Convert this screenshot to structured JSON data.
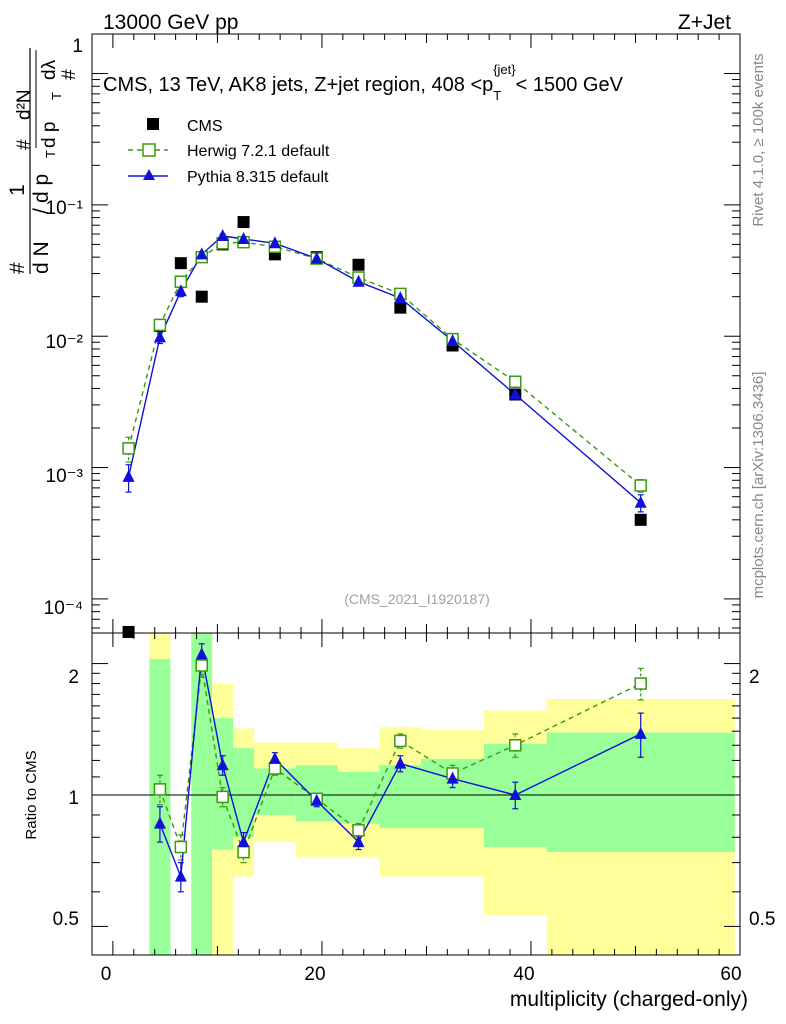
{
  "header": {
    "left": "13000 GeV pp",
    "right": "Z+Jet"
  },
  "side": {
    "rivet": "Rivet 4.1.0, ≥ 100k events",
    "mcplots": "mcplots.cern.ch [arXiv:1306.3436]"
  },
  "watermark": "(CMS_2021_I1920187)",
  "colors": {
    "cms": "#000000",
    "herwig": "#3a9a10",
    "pythia": "#1010d8",
    "band_inner": "#99ff99",
    "band_outer": "#ffff99"
  },
  "chart_data": [
    {
      "type": "scatter",
      "title": "CMS, 13 TeV, AK8 jets, Z+jet region, 408 <p_T^{jet}< 1500 GeV",
      "title_parts": {
        "main": "CMS, 13 TeV, AK8 jets, Z+jet region, 408 <p",
        "sub": "T",
        "sup": "{jet}",
        "tail": "< 1500 GeV"
      },
      "ylabel": "1/(dN/dp_T) d²N/(dp_T dλ)",
      "ylabel_parts": {
        "hash1": "#",
        "one": "1",
        "dN": "d N",
        "slash": "/",
        "dpT": "d p",
        "T": "T",
        "hash2": "#",
        "d2N": "d²N",
        "dp": "d p",
        "dl": "dλ",
        "hash3": "#"
      },
      "yscale": "log",
      "ylim": [
        5.5e-05,
        2.0
      ],
      "xlim": [
        -2,
        60
      ],
      "ytick_labels": [
        "10⁻⁴",
        "10⁻³",
        "10⁻²",
        "10⁻¹",
        "1"
      ],
      "legend": [
        "CMS",
        "Herwig 7.2.1 default",
        "Pythia 8.315 default"
      ],
      "series": [
        {
          "name": "CMS",
          "marker": "filled-square",
          "points": [
            [
              1.5,
              5.6e-05
            ],
            [
              4.5,
              0.012
            ],
            [
              6.5,
              0.036
            ],
            [
              8.5,
              0.02
            ],
            [
              10.5,
              0.05
            ],
            [
              12.5,
              0.074
            ],
            [
              15.5,
              0.042
            ],
            [
              19.5,
              0.04
            ],
            [
              23.5,
              0.035
            ],
            [
              27.5,
              0.0165
            ],
            [
              32.5,
              0.0085
            ],
            [
              38.5,
              0.0036
            ],
            [
              50.5,
              0.0004
            ]
          ]
        },
        {
          "name": "Herwig 7.2.1 default",
          "marker": "open-square",
          "line": "dashed",
          "points": [
            [
              1.5,
              0.0014
            ],
            [
              4.5,
              0.0122
            ],
            [
              6.5,
              0.026
            ],
            [
              8.5,
              0.04
            ],
            [
              10.5,
              0.051
            ],
            [
              12.5,
              0.052
            ],
            [
              15.5,
              0.048
            ],
            [
              19.5,
              0.039
            ],
            [
              23.5,
              0.028
            ],
            [
              27.5,
              0.021
            ],
            [
              32.5,
              0.0095
            ],
            [
              38.5,
              0.0045
            ],
            [
              50.5,
              0.00073
            ]
          ],
          "yerr": [
            0.0003,
            0.0012,
            0.002,
            0.002,
            0.002,
            0.002,
            0.002,
            0.0015,
            0.001,
            0.001,
            0.0006,
            0.0003,
            8e-05
          ]
        },
        {
          "name": "Pythia 8.315 default",
          "marker": "filled-triangle",
          "line": "solid",
          "points": [
            [
              1.5,
              0.00085
            ],
            [
              4.5,
              0.0098
            ],
            [
              6.5,
              0.022
            ],
            [
              8.5,
              0.042
            ],
            [
              10.5,
              0.058
            ],
            [
              12.5,
              0.055
            ],
            [
              15.5,
              0.051
            ],
            [
              19.5,
              0.039
            ],
            [
              23.5,
              0.026
            ],
            [
              27.5,
              0.0195
            ],
            [
              32.5,
              0.0092
            ],
            [
              38.5,
              0.0036
            ],
            [
              50.5,
              0.00054
            ]
          ],
          "yerr": [
            0.0002,
            0.001,
            0.002,
            0.002,
            0.002,
            0.002,
            0.002,
            0.0015,
            0.001,
            0.001,
            0.0005,
            0.0003,
            8e-05
          ]
        }
      ]
    },
    {
      "type": "scatter",
      "ylabel": "Ratio to CMS",
      "xlabel": "multiplicity (charged-only)",
      "yscale": "log",
      "ylim": [
        0.43,
        2.35
      ],
      "xlim": [
        -2,
        60
      ],
      "yticks": [
        0.5,
        1,
        2
      ],
      "ytick_labels": [
        "0.5",
        "1",
        "2"
      ],
      "xticks": [
        0,
        20,
        40,
        60
      ],
      "xtick_labels": [
        "0",
        "20",
        "40",
        "60"
      ],
      "bands": [
        {
          "x0": 3.5,
          "x1": 5.5,
          "inner": [
            0.3,
            2.05
          ],
          "outer": [
            0.3,
            2.4
          ]
        },
        {
          "x0": 5.5,
          "x1": 7.5,
          "inner": [
            0.3,
            0.3
          ],
          "outer": [
            0.3,
            0.3
          ]
        },
        {
          "x0": 7.5,
          "x1": 9.5,
          "inner": [
            0.3,
            2.4
          ],
          "outer": [
            0.3,
            2.4
          ]
        },
        {
          "x0": 9.5,
          "x1": 11.5,
          "inner": [
            0.75,
            1.5
          ],
          "outer": [
            0.3,
            1.8
          ]
        },
        {
          "x0": 11.5,
          "x1": 13.5,
          "inner": [
            0.8,
            1.28
          ],
          "outer": [
            0.65,
            1.42
          ]
        },
        {
          "x0": 13.5,
          "x1": 17.5,
          "inner": [
            0.9,
            1.15
          ],
          "outer": [
            0.78,
            1.32
          ]
        },
        {
          "x0": 17.5,
          "x1": 21.5,
          "inner": [
            0.87,
            1.17
          ],
          "outer": [
            0.72,
            1.32
          ]
        },
        {
          "x0": 21.5,
          "x1": 25.5,
          "inner": [
            0.86,
            1.13
          ],
          "outer": [
            0.72,
            1.28
          ]
        },
        {
          "x0": 25.5,
          "x1": 29.5,
          "inner": [
            0.84,
            1.17
          ],
          "outer": [
            0.65,
            1.43
          ]
        },
        {
          "x0": 29.5,
          "x1": 35.5,
          "inner": [
            0.84,
            1.21
          ],
          "outer": [
            0.65,
            1.41
          ]
        },
        {
          "x0": 35.5,
          "x1": 41.5,
          "inner": [
            0.76,
            1.31
          ],
          "outer": [
            0.53,
            1.56
          ]
        },
        {
          "x0": 41.5,
          "x1": 59.5,
          "inner": [
            0.74,
            1.39
          ],
          "outer": [
            0.3,
            1.66
          ]
        }
      ],
      "series": [
        {
          "name": "Herwig 7.2.1 default",
          "marker": "open-square",
          "line": "dashed",
          "points": [
            [
              4.5,
              1.03
            ],
            [
              6.5,
              0.76
            ],
            [
              8.5,
              1.98
            ],
            [
              10.5,
              0.99
            ],
            [
              12.5,
              0.74
            ],
            [
              15.5,
              1.15
            ],
            [
              19.5,
              0.98
            ],
            [
              23.5,
              0.83
            ],
            [
              27.5,
              1.33
            ],
            [
              32.5,
              1.12
            ],
            [
              38.5,
              1.3
            ],
            [
              50.5,
              1.8
            ]
          ],
          "yerr": [
            0.08,
            0.05,
            0.12,
            0.05,
            0.04,
            0.04,
            0.03,
            0.03,
            0.05,
            0.05,
            0.08,
            0.15
          ]
        },
        {
          "name": "Pythia 8.315 default",
          "marker": "filled-triangle",
          "line": "solid",
          "points": [
            [
              4.5,
              0.86
            ],
            [
              6.5,
              0.65
            ],
            [
              8.5,
              2.1
            ],
            [
              10.5,
              1.17
            ],
            [
              12.5,
              0.78
            ],
            [
              15.5,
              1.21
            ],
            [
              19.5,
              0.97
            ],
            [
              23.5,
              0.78
            ],
            [
              27.5,
              1.18
            ],
            [
              32.5,
              1.09
            ],
            [
              38.5,
              1.0
            ],
            [
              50.5,
              1.38
            ]
          ],
          "yerr": [
            0.08,
            0.05,
            0.12,
            0.06,
            0.04,
            0.04,
            0.03,
            0.03,
            0.05,
            0.05,
            0.07,
            0.16
          ]
        }
      ],
      "reference_line": 1
    }
  ]
}
